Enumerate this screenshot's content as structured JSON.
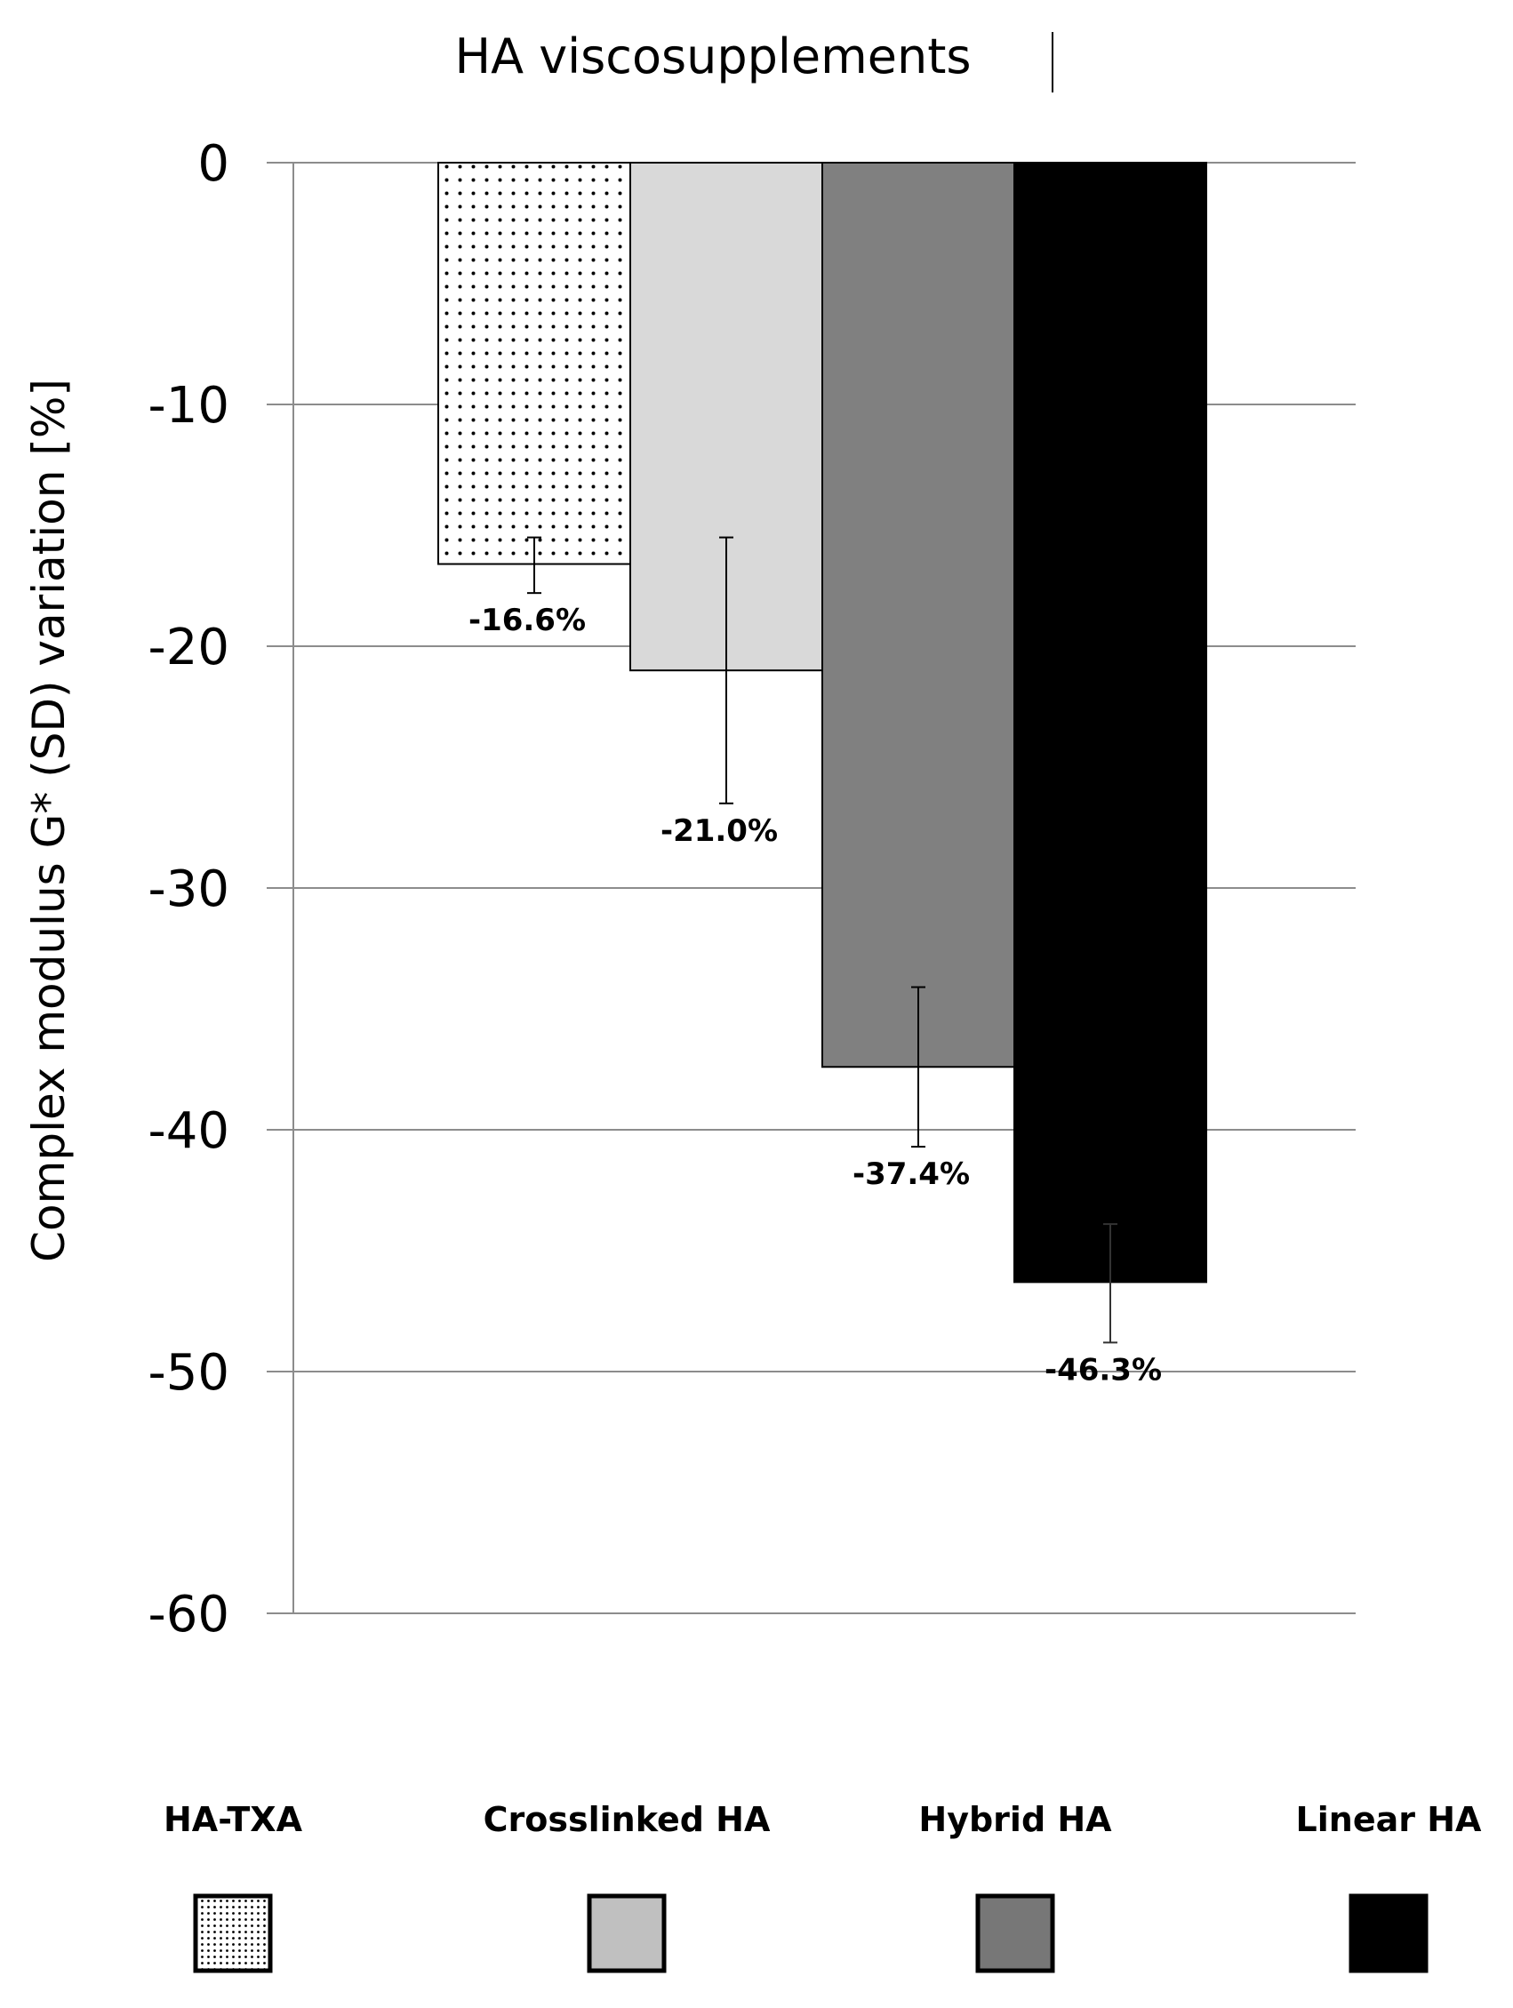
{
  "chart_data": {
    "type": "bar",
    "title": "HA viscosupplements",
    "ylabel": "Complex modulus G* (SD) variation [%]",
    "xlabel": "",
    "ylim": [
      -60,
      0
    ],
    "yticks": [
      0,
      -10,
      -20,
      -30,
      -40,
      -50,
      -60
    ],
    "grid": true,
    "legend_position": "bottom",
    "categories": [
      "HA-TXA",
      "Crosslinked HA",
      "Hybrid HA",
      "Linear HA"
    ],
    "values": [
      -16.6,
      -21.0,
      -37.4,
      -46.3
    ],
    "error_low": [
      -17.8,
      -26.5,
      -40.7,
      -48.8
    ],
    "error_high": [
      -15.5,
      -15.5,
      -34.1,
      -43.9
    ],
    "data_labels": [
      "-16.6%",
      "-21.0%",
      "-37.4%",
      "-46.3%"
    ],
    "colors": [
      "#ffffff",
      "#d9d9d9",
      "#808080",
      "#000000"
    ],
    "patterns": [
      "dots",
      "solid",
      "solid",
      "solid"
    ]
  }
}
